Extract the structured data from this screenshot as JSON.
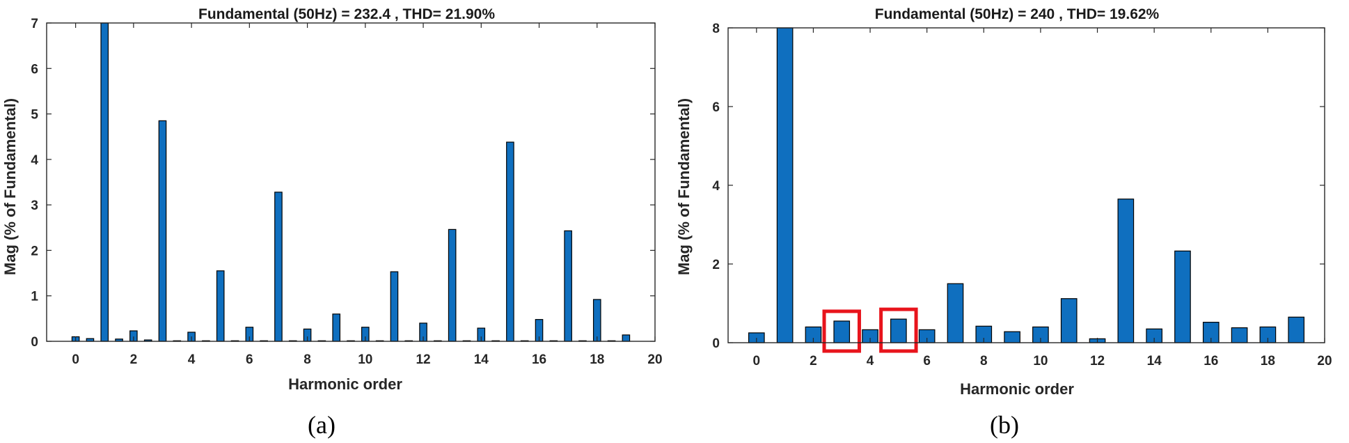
{
  "chart_data": [
    {
      "type": "bar",
      "panel": "(a)",
      "title": "Fundamental (50Hz) = 232.4 , THD= 21.90%",
      "xlabel": "Harmonic order",
      "ylabel": "Mag (% of Fundamental)",
      "xlim": [
        -1,
        20
      ],
      "ylim": [
        0,
        7
      ],
      "xticks": [
        0,
        2,
        4,
        6,
        8,
        10,
        12,
        14,
        16,
        18,
        20
      ],
      "yticks": [
        0,
        1,
        2,
        3,
        4,
        5,
        6,
        7
      ],
      "grid": false,
      "bar_width": 0.25,
      "x": [
        0,
        0.5,
        1,
        1.5,
        2,
        2.5,
        3,
        3.5,
        4,
        4.5,
        5,
        5.5,
        6,
        6.5,
        7,
        7.5,
        8,
        8.5,
        9,
        9.5,
        10,
        10.5,
        11,
        11.5,
        12,
        12.5,
        13,
        13.5,
        14,
        14.5,
        15,
        15.5,
        16,
        16.5,
        17,
        17.5,
        18,
        18.5,
        19
      ],
      "values": [
        0.1,
        0.06,
        7.0,
        0.05,
        0.23,
        0.03,
        4.85,
        0.01,
        0.2,
        0.01,
        1.55,
        0.01,
        0.31,
        0.01,
        3.28,
        0.01,
        0.27,
        0.01,
        0.6,
        0.01,
        0.31,
        0.01,
        1.53,
        0.01,
        0.4,
        0.01,
        2.46,
        0.01,
        0.29,
        0.01,
        4.38,
        0.01,
        0.48,
        0.01,
        2.43,
        0.01,
        0.92,
        0.01,
        0.14
      ]
    },
    {
      "type": "bar",
      "panel": "(b)",
      "title": "Fundamental (50Hz) = 240 , THD= 19.62%",
      "xlabel": "Harmonic order",
      "ylabel": "Mag (% of Fundamental)",
      "xlim": [
        -1,
        20
      ],
      "ylim": [
        0,
        8
      ],
      "xticks": [
        0,
        2,
        4,
        6,
        8,
        10,
        12,
        14,
        16,
        18,
        20
      ],
      "yticks": [
        0,
        2,
        4,
        6,
        8
      ],
      "grid": false,
      "bar_width": 0.55,
      "x": [
        0,
        1,
        2,
        3,
        4,
        5,
        6,
        7,
        8,
        9,
        10,
        11,
        12,
        13,
        14,
        15,
        16,
        17,
        18,
        19
      ],
      "values": [
        0.25,
        8.0,
        0.4,
        0.55,
        0.33,
        0.6,
        0.33,
        1.5,
        0.42,
        0.28,
        0.4,
        1.12,
        0.1,
        3.65,
        0.35,
        2.33,
        0.52,
        0.38,
        0.4,
        0.65
      ],
      "highlighted_harmonics": [
        3,
        5
      ]
    }
  ]
}
